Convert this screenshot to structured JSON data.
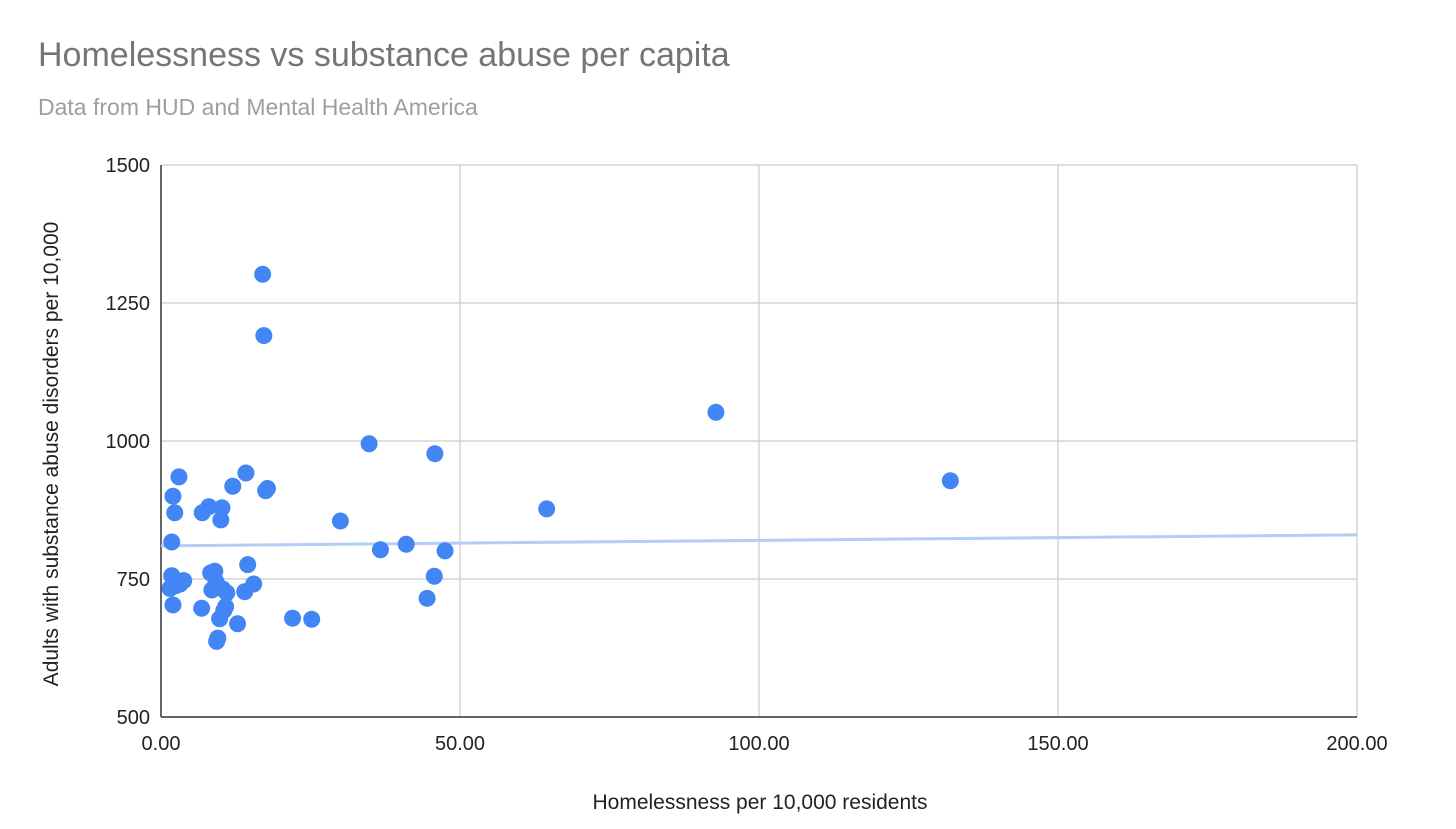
{
  "chart_data": {
    "type": "scatter",
    "title": "Homelessness vs substance abuse per capita",
    "subtitle": "Data from HUD and Mental Health America",
    "xlabel": "Homelessness per 10,000 residents",
    "ylabel": "Adults with substance abuse disorders per 10,000",
    "xlim": [
      0,
      200
    ],
    "ylim": [
      500,
      1500
    ],
    "xticks": [
      "0.00",
      "50.00",
      "100.00",
      "150.00",
      "200.00"
    ],
    "yticks": [
      "500",
      "750",
      "1000",
      "1250",
      "1500"
    ],
    "grid": true,
    "legend": "none",
    "colors": {
      "points": "#4285f4",
      "trendline": "#b3cdf7",
      "grid": "#cccccc",
      "axis": "#333333"
    },
    "trendline": {
      "type": "linear",
      "points": [
        [
          0,
          810
        ],
        [
          200,
          830
        ]
      ]
    },
    "points": [
      [
        1.5,
        733
      ],
      [
        1.8,
        817
      ],
      [
        1.8,
        756
      ],
      [
        2.0,
        703
      ],
      [
        2.0,
        900
      ],
      [
        2.3,
        870
      ],
      [
        2.5,
        738
      ],
      [
        3.0,
        935
      ],
      [
        3.2,
        741
      ],
      [
        3.8,
        747
      ],
      [
        6.8,
        697
      ],
      [
        6.9,
        870
      ],
      [
        8.0,
        881
      ],
      [
        8.3,
        761
      ],
      [
        8.5,
        730
      ],
      [
        9.0,
        764
      ],
      [
        9.2,
        745
      ],
      [
        9.3,
        637
      ],
      [
        9.5,
        643
      ],
      [
        9.8,
        678
      ],
      [
        10.0,
        857
      ],
      [
        10.2,
        879
      ],
      [
        10.3,
        732
      ],
      [
        10.5,
        693
      ],
      [
        10.8,
        700
      ],
      [
        11.0,
        725
      ],
      [
        12.0,
        918
      ],
      [
        12.8,
        669
      ],
      [
        14.0,
        727
      ],
      [
        14.2,
        942
      ],
      [
        14.5,
        776
      ],
      [
        15.5,
        741
      ],
      [
        17.0,
        1302
      ],
      [
        17.2,
        1191
      ],
      [
        17.5,
        910
      ],
      [
        17.8,
        914
      ],
      [
        22.0,
        679
      ],
      [
        25.2,
        677
      ],
      [
        30.0,
        855
      ],
      [
        34.8,
        995
      ],
      [
        36.7,
        803
      ],
      [
        41.0,
        813
      ],
      [
        44.5,
        715
      ],
      [
        45.7,
        755
      ],
      [
        45.8,
        977
      ],
      [
        47.5,
        801
      ],
      [
        64.5,
        877
      ],
      [
        92.8,
        1052
      ],
      [
        132.0,
        928
      ]
    ]
  }
}
